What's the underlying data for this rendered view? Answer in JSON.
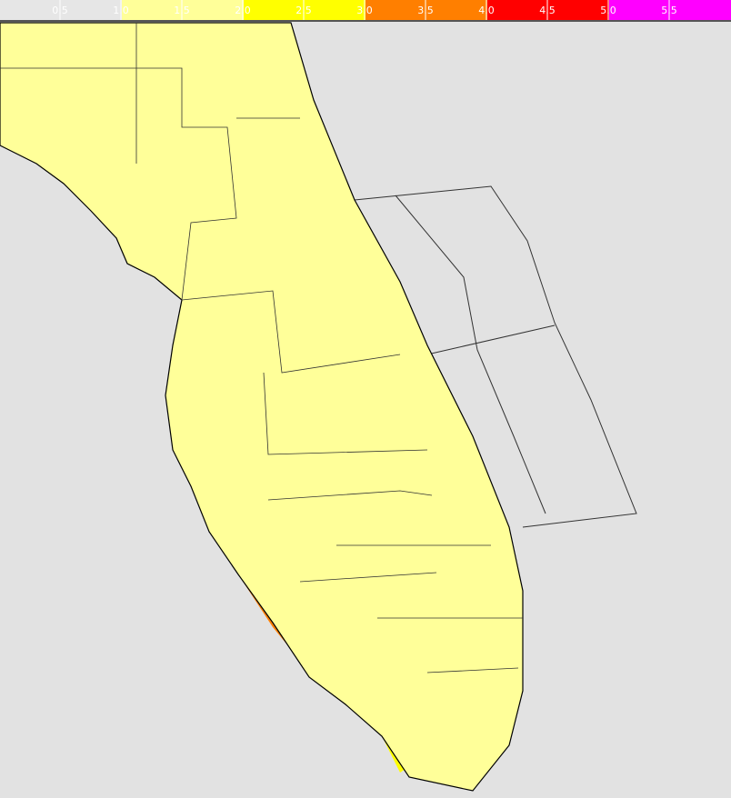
{
  "legend": {
    "colors": [
      "#e6e6e6",
      "#ffff99",
      "#ffff00",
      "#ff7f00",
      "#ff0000",
      "#ff00ff"
    ],
    "labels": [
      "0.5",
      "1.0",
      "1.5",
      "2.0",
      "2.5",
      "3.0",
      "3.5",
      "4.0",
      "4.5",
      "5.0",
      "5.5"
    ]
  }
}
